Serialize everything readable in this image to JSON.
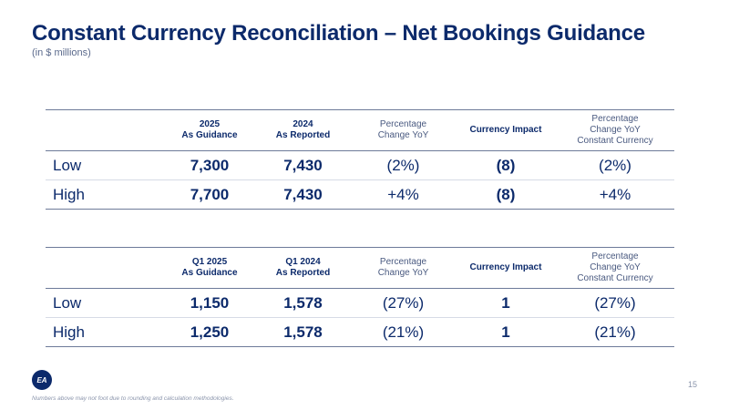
{
  "header": {
    "title": "Constant Currency Reconciliation – Net Bookings Guidance",
    "subtitle": "(in $ millions)"
  },
  "annual_table": {
    "headers": [
      {
        "line1": "2025",
        "line2": "As Guidance",
        "line3": ""
      },
      {
        "line1": "2024",
        "line2": "As Reported",
        "line3": ""
      },
      {
        "line1": "Percentage",
        "line2": "Change YoY",
        "line3": ""
      },
      {
        "line1": "Currency Impact",
        "line2": "",
        "line3": ""
      },
      {
        "line1": "Percentage",
        "line2": "Change YoY",
        "line3": "Constant Currency"
      }
    ],
    "rows": [
      {
        "label": "Low",
        "guidance": "7,300",
        "reported": "7,430",
        "pct_change": "(2%)",
        "currency_impact": "(8)",
        "pct_change_cc": "(2%)"
      },
      {
        "label": "High",
        "guidance": "7,700",
        "reported": "7,430",
        "pct_change": "+4%",
        "currency_impact": "(8)",
        "pct_change_cc": "+4%"
      }
    ]
  },
  "quarter_table": {
    "headers": [
      {
        "line1": "Q1 2025",
        "line2": "As Guidance",
        "line3": ""
      },
      {
        "line1": "Q1 2024",
        "line2": "As Reported",
        "line3": ""
      },
      {
        "line1": "Percentage",
        "line2": "Change YoY",
        "line3": ""
      },
      {
        "line1": "Currency Impact",
        "line2": "",
        "line3": ""
      },
      {
        "line1": "Percentage",
        "line2": "Change YoY",
        "line3": "Constant Currency"
      }
    ],
    "rows": [
      {
        "label": "Low",
        "guidance": "1,150",
        "reported": "1,578",
        "pct_change": "(27%)",
        "currency_impact": "1",
        "pct_change_cc": "(27%)"
      },
      {
        "label": "High",
        "guidance": "1,250",
        "reported": "1,578",
        "pct_change": "(21%)",
        "currency_impact": "1",
        "pct_change_cc": "(21%)"
      }
    ]
  },
  "footer": {
    "logo_text": "EA",
    "logo_icon": "ea-logo-icon",
    "page_number": "15",
    "footnote": "Numbers above may not foot due to rounding and calculation methodologies."
  },
  "colors": {
    "brand_navy": "#0c2a6b",
    "muted_text": "#4a5a80",
    "rule": "#6d7a99"
  }
}
